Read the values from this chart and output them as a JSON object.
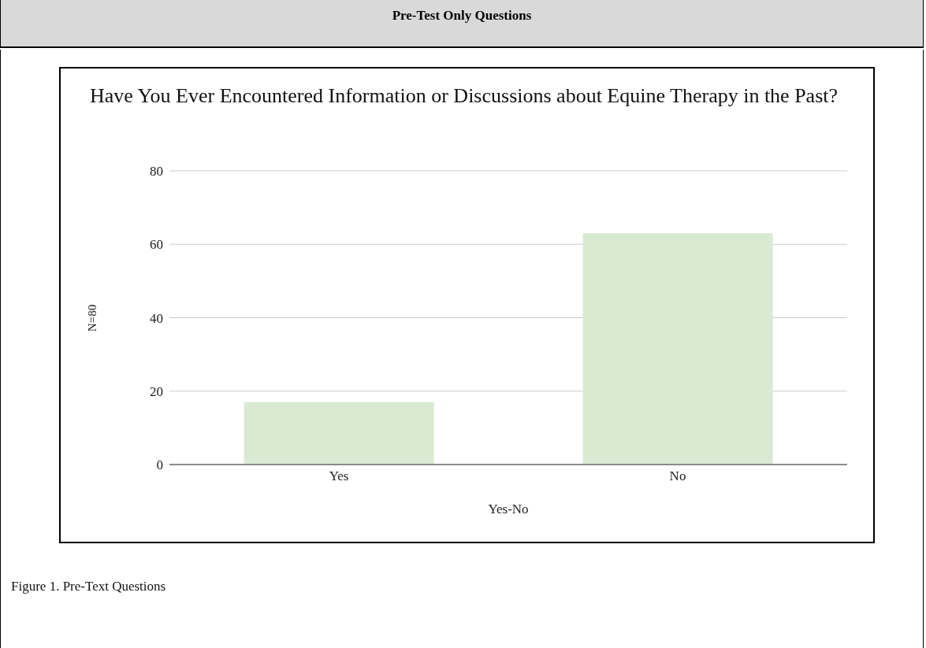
{
  "chart_data": {
    "type": "bar",
    "title": "Have You Ever Encountered Information or Discussions about Equine Therapy in the Past?",
    "xlabel": "Yes-No",
    "ylabel": "N=80",
    "categories": [
      "Yes",
      "No"
    ],
    "values": [
      17,
      63
    ],
    "color": "#d9ead3",
    "ylim": [
      0,
      80
    ],
    "yticks": [
      0,
      20,
      40,
      60,
      80
    ],
    "grid": "y",
    "annotations": [
      "Pre-Test Only Questions",
      "Figure 1. Pre-Text Questions"
    ]
  }
}
